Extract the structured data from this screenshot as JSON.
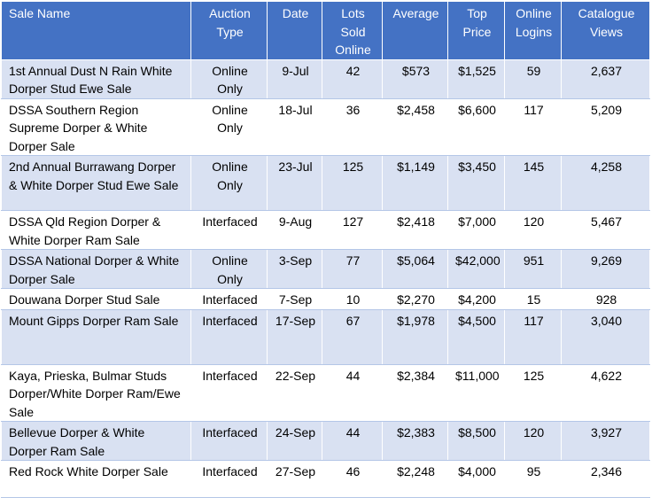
{
  "columns": [
    "Sale Name",
    "Auction Type",
    "Date",
    "Lots Sold Online",
    "Average",
    "Top Price",
    "Online Logins",
    "Catalogue Views"
  ],
  "rows": [
    [
      "1st Annual Dust N Rain White Dorper Stud Ewe Sale",
      "Online Only",
      "9-Jul",
      "42",
      "$573",
      "$1,525",
      "59",
      "2,637"
    ],
    [
      "DSSA Southern Region Supreme Dorper & White Dorper Sale",
      "Online Only",
      "18-Jul",
      "36",
      "$2,458",
      "$6,600",
      "117",
      "5,209"
    ],
    [
      "2nd Annual Burrawang Dorper & White Dorper Stud Ewe Sale",
      "Online Only",
      "23-Jul",
      "125",
      "$1,149",
      "$3,450",
      "145",
      "4,258"
    ],
    [
      "DSSA Qld Region Dorper & White Dorper Ram Sale",
      "Interfaced",
      "9-Aug",
      "127",
      "$2,418",
      "$7,000",
      "120",
      "5,467"
    ],
    [
      "DSSA National Dorper & White Dorper Sale",
      "Online Only",
      "3-Sep",
      "77",
      "$5,064",
      "$42,000",
      "951",
      "9,269"
    ],
    [
      "Douwana Dorper Stud Sale",
      "Interfaced",
      "7-Sep",
      "10",
      "$2,270",
      "$4,200",
      "15",
      "928"
    ],
    [
      "Mount Gipps Dorper Ram Sale",
      "Interfaced",
      "17-Sep",
      "67",
      "$1,978",
      "$4,500",
      "117",
      "3,040"
    ],
    [
      "Kaya, Prieska, Bulmar Studs Dorper/White Dorper Ram/Ewe Sale",
      "Interfaced",
      "22-Sep",
      "44",
      "$2,384",
      "$11,000",
      "125",
      "4,622"
    ],
    [
      "Bellevue Dorper & White Dorper Ram Sale",
      "Interfaced",
      "24-Sep",
      "44",
      "$2,383",
      "$8,500",
      "120",
      "3,927"
    ],
    [
      "Red Rock White Dorper Sale",
      "Interfaced",
      "27-Sep",
      "46",
      "$2,248",
      "$4,000",
      "95",
      "2,346"
    ]
  ]
}
